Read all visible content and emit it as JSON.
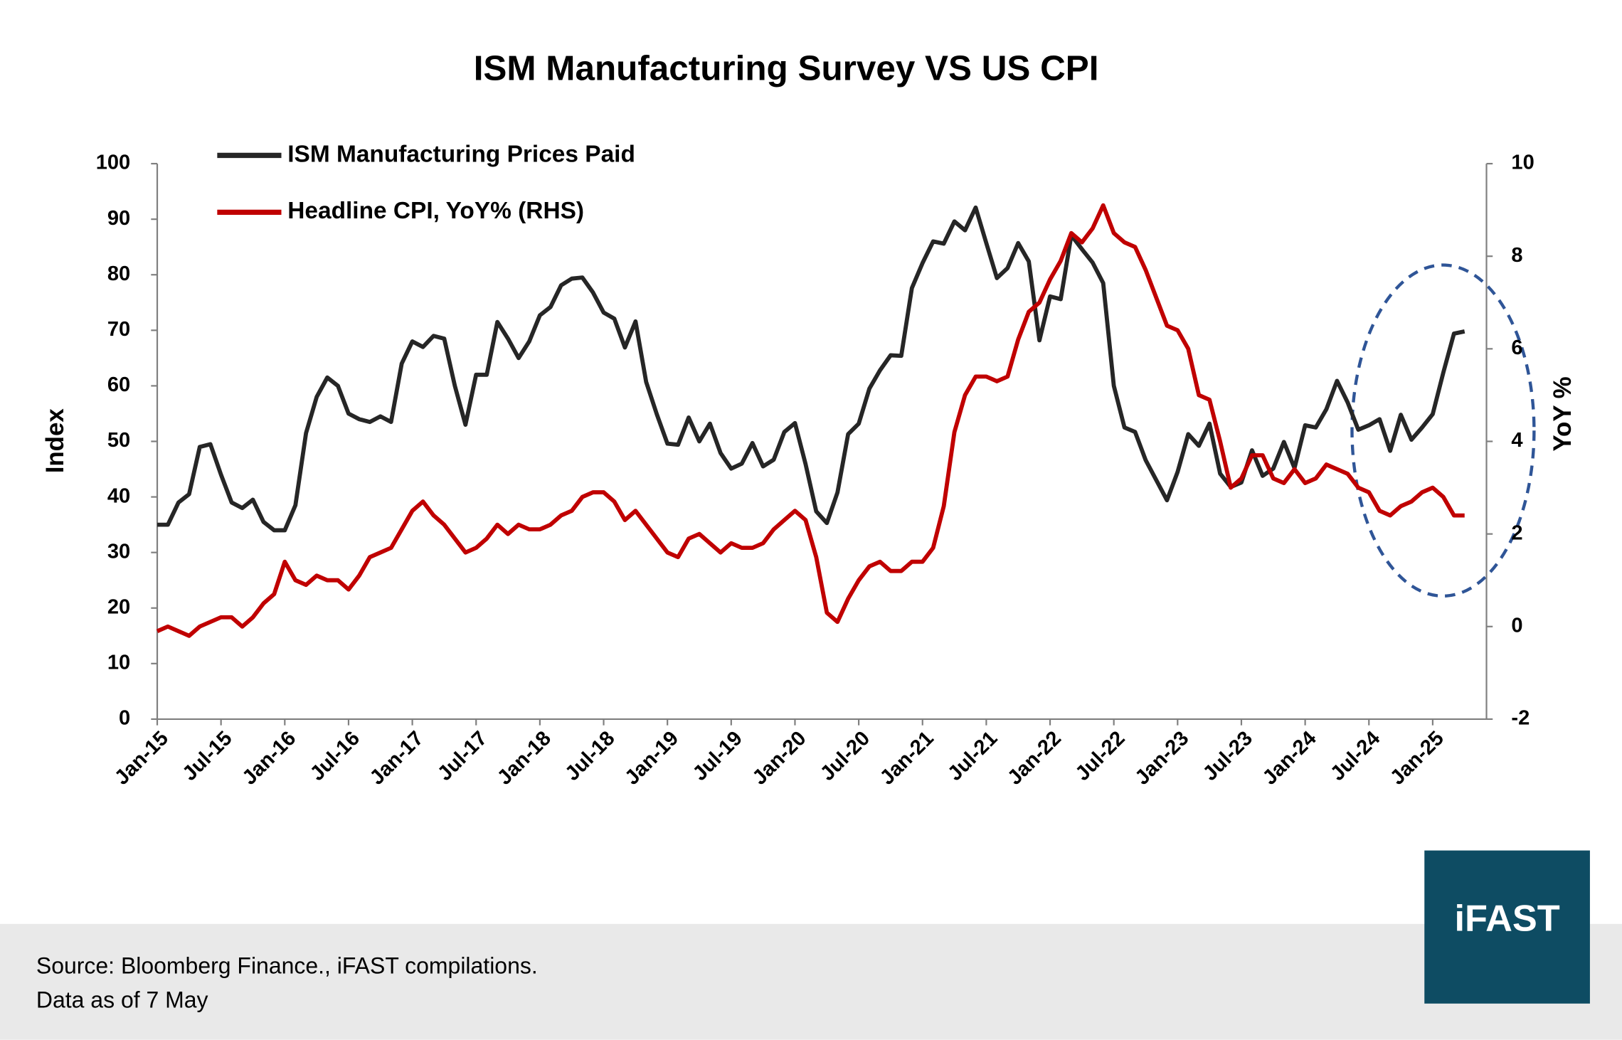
{
  "chart_data": {
    "type": "line",
    "title": "ISM Manufacturing Survey VS US CPI",
    "ylabel": "Index",
    "y2label": "YoY %",
    "categories": [
      "Jan-15",
      null,
      null,
      null,
      null,
      null,
      "Jul-15",
      null,
      null,
      null,
      null,
      null,
      "Jan-16",
      null,
      null,
      null,
      null,
      null,
      "Jul-16",
      null,
      null,
      null,
      null,
      null,
      "Jan-17",
      null,
      null,
      null,
      null,
      null,
      "Jul-17",
      null,
      null,
      null,
      null,
      null,
      "Jan-18",
      null,
      null,
      null,
      null,
      null,
      "Jul-18",
      null,
      null,
      null,
      null,
      null,
      "Jan-19",
      null,
      null,
      null,
      null,
      null,
      "Jul-19",
      null,
      null,
      null,
      null,
      null,
      "Jan-20",
      null,
      null,
      null,
      null,
      null,
      "Jul-20",
      null,
      null,
      null,
      null,
      null,
      "Jan-21",
      null,
      null,
      null,
      null,
      null,
      "Jul-21",
      null,
      null,
      null,
      null,
      null,
      "Jan-22",
      null,
      null,
      null,
      null,
      null,
      "Jul-22",
      null,
      null,
      null,
      null,
      null,
      "Jan-23",
      null,
      null,
      null,
      null,
      null,
      "Jul-23",
      null,
      null,
      null,
      null,
      null,
      "Jan-24",
      null,
      null,
      null,
      null,
      null,
      "Jul-24",
      null,
      null,
      null,
      null,
      null,
      "Jan-25",
      null,
      null,
      null
    ],
    "series": [
      {
        "name": "ISM Manufacturing Prices Paid",
        "color": "#262626",
        "axis": "y",
        "values": [
          35,
          35,
          39,
          40.5,
          49,
          49.5,
          44,
          39,
          38,
          39.5,
          35.5,
          34,
          34,
          38.5,
          51.5,
          58,
          61.5,
          60,
          55,
          54,
          53.5,
          54.5,
          53.5,
          64,
          68,
          67,
          69,
          68.5,
          60,
          53,
          62,
          62,
          71.5,
          68.5,
          65,
          68,
          72.7,
          74.2,
          78.1,
          79.3,
          79.5,
          76.8,
          73.2,
          72.1,
          66.9,
          71.6,
          60.7,
          54.9,
          49.6,
          49.4,
          54.3,
          50,
          53.2,
          47.9,
          45.1,
          46,
          49.7,
          45.5,
          46.7,
          51.7,
          53.3,
          45.9,
          37.4,
          35.3,
          40.8,
          51.3,
          53.2,
          59.5,
          62.8,
          65.5,
          65.4,
          77.6,
          82.1,
          86,
          85.6,
          89.6,
          88,
          92.1,
          85.7,
          79.4,
          81.2,
          85.7,
          82.4,
          68.2,
          76.1,
          75.6,
          87.1,
          84.6,
          82.2,
          78.5,
          60,
          52.5,
          51.7,
          46.6,
          43,
          39.4,
          44.5,
          51.3,
          49.2,
          53.2,
          44.2,
          41.8,
          42.6,
          48.4,
          43.8,
          45.1,
          49.9,
          45.2,
          52.9,
          52.5,
          55.8,
          60.9,
          57,
          52.1,
          52.9,
          54,
          48.3,
          54.8,
          50.3,
          52.5,
          54.9,
          62.4,
          69.4,
          69.8
        ]
      },
      {
        "name": "Headline CPI, YoY% (RHS)",
        "color": "#c00000",
        "axis": "y2",
        "values": [
          -0.1,
          0,
          -0.1,
          -0.2,
          0,
          0.1,
          0.2,
          0.2,
          0,
          0.2,
          0.5,
          0.7,
          1.4,
          1,
          0.9,
          1.1,
          1,
          1,
          0.8,
          1.1,
          1.5,
          1.6,
          1.7,
          2.1,
          2.5,
          2.7,
          2.4,
          2.2,
          1.9,
          1.6,
          1.7,
          1.9,
          2.2,
          2,
          2.2,
          2.1,
          2.1,
          2.2,
          2.4,
          2.5,
          2.8,
          2.9,
          2.9,
          2.7,
          2.3,
          2.5,
          2.2,
          1.9,
          1.6,
          1.5,
          1.9,
          2,
          1.8,
          1.6,
          1.8,
          1.7,
          1.7,
          1.8,
          2.1,
          2.3,
          2.5,
          2.3,
          1.5,
          0.3,
          0.1,
          0.6,
          1,
          1.3,
          1.4,
          1.2,
          1.2,
          1.4,
          1.4,
          1.7,
          2.6,
          4.2,
          5,
          5.4,
          5.4,
          5.3,
          5.4,
          6.2,
          6.8,
          7,
          7.5,
          7.9,
          8.5,
          8.3,
          8.6,
          9.1,
          8.5,
          8.3,
          8.2,
          7.7,
          7.1,
          6.5,
          6.4,
          6,
          5,
          4.9,
          4,
          3,
          3.2,
          3.7,
          3.7,
          3.2,
          3.1,
          3.4,
          3.1,
          3.2,
          3.5,
          3.4,
          3.3,
          3,
          2.9,
          2.5,
          2.4,
          2.6,
          2.7,
          2.9,
          3,
          2.8,
          2.4,
          2.4
        ]
      }
    ],
    "ylim": [
      0,
      100
    ],
    "yticks": [
      0,
      10,
      20,
      30,
      40,
      50,
      60,
      70,
      80,
      90,
      100
    ],
    "y2lim": [
      -2,
      10
    ],
    "y2ticks": [
      -2,
      0,
      2,
      4,
      6,
      8,
      10
    ],
    "grid": false,
    "legend": "upper left",
    "notes": [
      "Source: Bloomberg Finance., iFAST compilations.",
      "Data as of 7 May"
    ],
    "logo": "iFAST"
  }
}
